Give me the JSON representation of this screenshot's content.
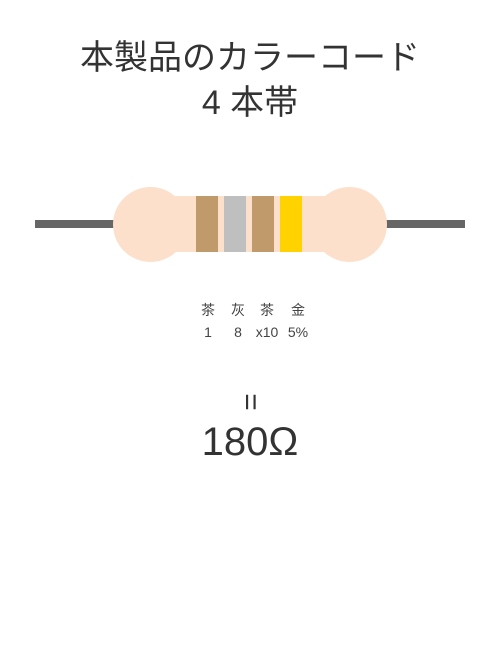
{
  "title": {
    "line1": "本製品のカラーコード",
    "line2": "4 本帯"
  },
  "resistor": {
    "body_color": "#fce0cb",
    "lead_color": "#666666",
    "bands": [
      {
        "name": "茶",
        "value": "1",
        "color": "#c19a6b"
      },
      {
        "name": "灰",
        "value": "8",
        "color": "#bfbfbf"
      },
      {
        "name": "茶",
        "value": "x10",
        "color": "#c19a6b"
      },
      {
        "name": "金",
        "value": "5%",
        "color": "#ffd200"
      }
    ]
  },
  "equals_symbol": "=",
  "result": "180Ω",
  "colors": {
    "text": "#333333",
    "label_text": "#444444",
    "background": "#ffffff"
  }
}
